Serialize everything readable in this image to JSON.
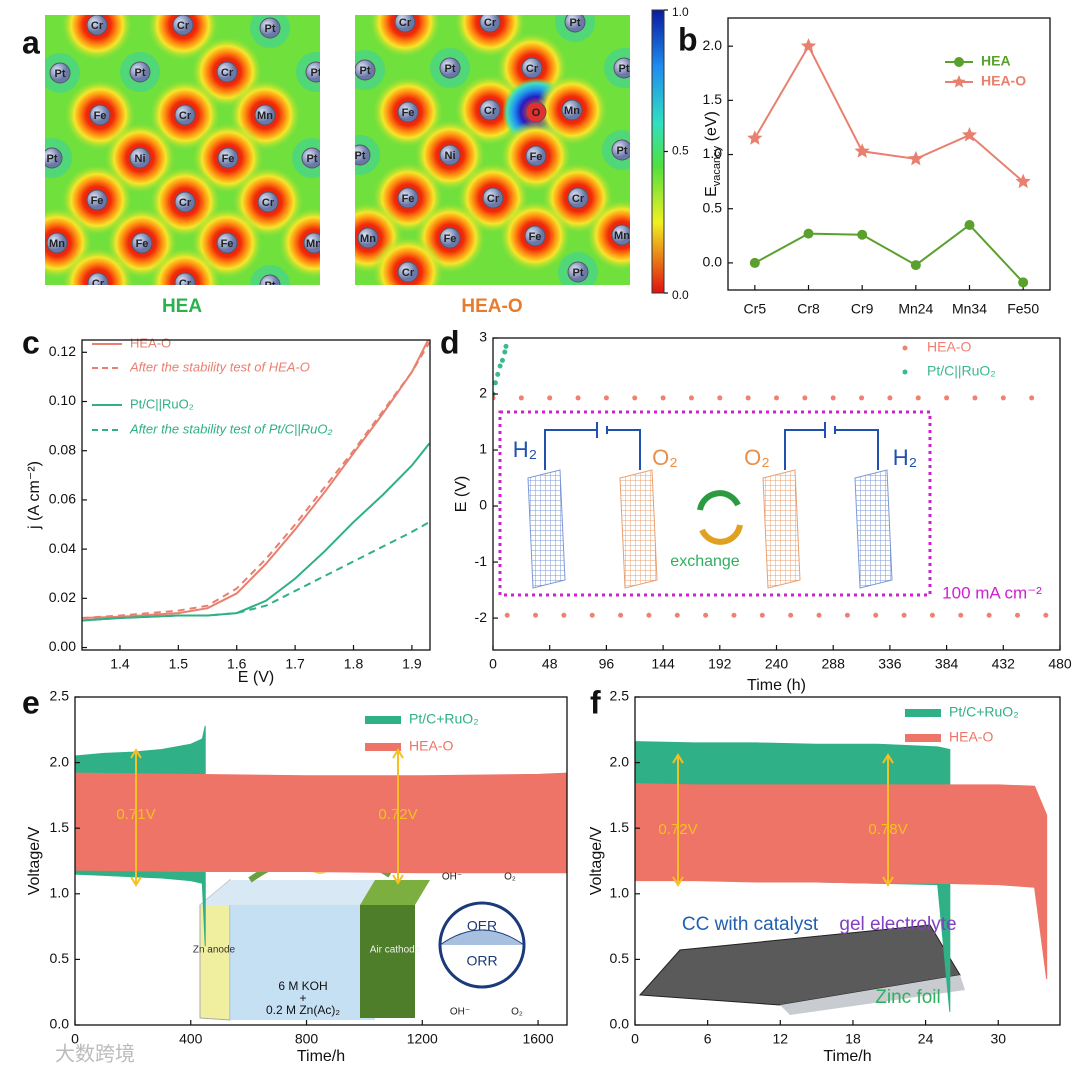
{
  "panel_labels": [
    "a",
    "b",
    "c",
    "d",
    "e",
    "f"
  ],
  "panel_a": {
    "maps": [
      {
        "label": "HEA",
        "label_color": "#2bb24c",
        "atoms": [
          "Cr",
          "Cr",
          "Pt",
          "Pt",
          "Pt",
          "Cr",
          "Pt",
          "Fe",
          "Cr",
          "Mn",
          "Pt",
          "Ni",
          "Fe",
          "Pt",
          "Fe",
          "Cr",
          "Cr",
          "Mn",
          "Fe",
          "Fe",
          "Mn",
          "Cr",
          "Cr",
          "Pt"
        ]
      },
      {
        "label": "HEA-O",
        "label_color": "#e87b2e",
        "atoms": [
          "Cr",
          "Cr",
          "Pt",
          "Pt",
          "Pt",
          "Cr",
          "Pt",
          "Fe",
          "Cr",
          "O",
          "Mn",
          "Pt",
          "Ni",
          "Fe",
          "Pt",
          "Fe",
          "Cr",
          "Cr",
          "Mn",
          "Fe",
          "Fe",
          "Mn",
          "Cr",
          "Pt"
        ]
      }
    ],
    "colorbar_ticks": [
      {
        "value": 1,
        "label": "1.0"
      },
      {
        "value": 0.5,
        "label": "0.5"
      },
      {
        "value": 0,
        "label": "0.0"
      }
    ]
  },
  "chart_data": [
    {
      "type": "line",
      "y_label": "E",
      "y_label_sub": "vacancy",
      "y_label_unit": " (eV)",
      "categories": [
        "Cr5",
        "Cr8",
        "Cr9",
        "Mn24",
        "Mn34",
        "Fe50"
      ],
      "ylim": [
        -0.25,
        2.26
      ],
      "yticks": [
        {
          "value": 0,
          "label": "0.0"
        },
        {
          "value": 0.5,
          "label": "0.5"
        },
        {
          "value": 1,
          "label": "1.0"
        },
        {
          "value": 1.5,
          "label": "1.5"
        },
        {
          "value": 2,
          "label": "2.0"
        }
      ],
      "series": [
        {
          "name": "HEA",
          "color": "#5aa02c",
          "marker": "circle",
          "values": [
            0,
            0.27,
            0.26,
            -0.02,
            0.35,
            -0.18
          ]
        },
        {
          "name": "HEA-O",
          "color": "#e8806f",
          "marker": "star",
          "values": [
            1.15,
            2.0,
            1.03,
            0.96,
            1.18,
            0.75
          ]
        }
      ]
    },
    {
      "type": "line",
      "x_label": "E (V)",
      "y_label": "j (A cm⁻²)",
      "x": [
        1.335,
        1.4,
        1.5,
        1.55,
        1.6,
        1.65,
        1.7,
        1.75,
        1.8,
        1.85,
        1.9,
        1.93
      ],
      "xlim": [
        1.335,
        1.931
      ],
      "xticks": [
        1.4,
        1.5,
        1.6,
        1.7,
        1.8,
        1.9
      ],
      "ylim": [
        -0.001,
        0.125
      ],
      "yticks": [
        {
          "value": 0,
          "label": "0.00"
        },
        {
          "value": 0.02,
          "label": "0.02"
        },
        {
          "value": 0.04,
          "label": "0.04"
        },
        {
          "value": 0.06,
          "label": "0.06"
        },
        {
          "value": 0.08,
          "label": "0.08"
        },
        {
          "value": 0.1,
          "label": "0.10"
        },
        {
          "value": 0.12,
          "label": "0.12"
        }
      ],
      "series": [
        {
          "name": "HEA-O",
          "color": "#e8806f",
          "dash": false,
          "values": [
            0.012,
            0.0125,
            0.014,
            0.016,
            0.022,
            0.034,
            0.048,
            0.063,
            0.079,
            0.095,
            0.112,
            0.126
          ]
        },
        {
          "name": "After the stability test of HEA-O",
          "color": "#e8806f",
          "dash": true,
          "values": [
            0.012,
            0.013,
            0.015,
            0.017,
            0.024,
            0.036,
            0.05,
            0.065,
            0.08,
            0.096,
            0.112,
            0.124
          ]
        },
        {
          "name": "Pt/C||RuO₂",
          "color": "#2fb086",
          "dash": false,
          "values": [
            0.011,
            0.012,
            0.013,
            0.013,
            0.014,
            0.019,
            0.028,
            0.039,
            0.051,
            0.062,
            0.074,
            0.083
          ]
        },
        {
          "name": "After the stability test of Pt/C||RuO₂",
          "color": "#2fb086",
          "dash": true,
          "values": [
            0.011,
            0.012,
            0.013,
            0.013,
            0.014,
            0.017,
            0.023,
            0.029,
            0.035,
            0.041,
            0.047,
            0.051
          ]
        }
      ]
    },
    {
      "type": "scatter",
      "x_label": "Time (h)",
      "y_label": "E (V)",
      "xlim": [
        0,
        480
      ],
      "xticks": [
        0,
        48,
        96,
        144,
        192,
        240,
        288,
        336,
        384,
        432,
        480
      ],
      "ylim": [
        -2.57,
        3
      ],
      "yticks": [
        -2,
        -1,
        0,
        1,
        2,
        3
      ],
      "annotations": [
        "100 mA cm⁻²",
        "H₂",
        "O₂",
        "O₂",
        "H₂",
        "exchange"
      ],
      "series": [
        {
          "name": "HEA-O",
          "color": "#f08070",
          "x": [
            0,
            12,
            24,
            36,
            48,
            60,
            72,
            84,
            96,
            108,
            120,
            132,
            144,
            156,
            168,
            180,
            192,
            204,
            216,
            228,
            240,
            252,
            264,
            276,
            288,
            300,
            312,
            324,
            336,
            348,
            360,
            372,
            384,
            396,
            408,
            420,
            432,
            444,
            456,
            468
          ],
          "values": [
            1.93,
            -1.95,
            1.93,
            -1.95,
            1.93,
            -1.95,
            1.93,
            -1.95,
            1.93,
            -1.95,
            1.93,
            -1.95,
            1.93,
            -1.95,
            1.93,
            -1.95,
            1.93,
            -1.95,
            1.93,
            -1.95,
            1.93,
            -1.95,
            1.93,
            -1.95,
            1.93,
            -1.95,
            1.93,
            -1.95,
            1.93,
            -1.95,
            1.93,
            -1.95,
            1.93,
            -1.95,
            1.93,
            -1.95,
            1.93,
            -1.95,
            1.93,
            -1.95
          ]
        },
        {
          "name": "Pt/C||RuO₂",
          "color": "#3cb88e",
          "x": [
            0,
            2,
            4,
            6,
            8,
            10,
            11
          ],
          "values": [
            2.0,
            2.2,
            2.35,
            2.5,
            2.6,
            2.75,
            2.85
          ]
        }
      ]
    },
    {
      "type": "band",
      "x_label": "Time/h",
      "y_label": "Voltage/V",
      "xlim": [
        0,
        1700
      ],
      "xticks": [
        0,
        400,
        800,
        1200,
        1600
      ],
      "ylim": [
        0,
        2.5
      ],
      "yticks": [
        {
          "value": 0,
          "label": "0.0"
        },
        {
          "value": 0.5,
          "label": "0.5"
        },
        {
          "value": 1,
          "label": "1.0"
        },
        {
          "value": 1.5,
          "label": "1.5"
        },
        {
          "value": 2,
          "label": "2.0"
        },
        {
          "value": 2.5,
          "label": "2.5"
        }
      ],
      "annotations": [
        "0.71V",
        "0.72V",
        "Zn anode",
        "Air cathode",
        "6 M KOH",
        "+",
        "0.2 M Zn(Ac)₂",
        "OER",
        "ORR",
        "OH⁻",
        "O₂",
        "OH⁻",
        "O₂"
      ],
      "series": [
        {
          "name": "Pt/C+RuO₂",
          "color": "#2fb086",
          "x": [
            0,
            100,
            200,
            300,
            400,
            440,
            450
          ],
          "high": [
            2.05,
            2.07,
            2.08,
            2.1,
            2.14,
            2.18,
            2.28
          ],
          "low": [
            1.15,
            1.14,
            1.13,
            1.12,
            1.1,
            1.08,
            0.6
          ]
        },
        {
          "name": "HEA-O",
          "color": "#ee7467",
          "x": [
            0,
            400,
            800,
            1200,
            1600,
            1700
          ],
          "high": [
            1.92,
            1.91,
            1.9,
            1.9,
            1.91,
            1.92
          ],
          "low": [
            1.18,
            1.17,
            1.17,
            1.16,
            1.16,
            1.16
          ]
        }
      ]
    },
    {
      "type": "band",
      "x_label": "Time/h",
      "y_label": "Voltage/V",
      "xlim": [
        0,
        35.1
      ],
      "xticks": [
        0,
        6,
        12,
        18,
        24,
        30
      ],
      "ylim": [
        0,
        2.5
      ],
      "yticks": [
        {
          "value": 0,
          "label": "0.0"
        },
        {
          "value": 0.5,
          "label": "0.5"
        },
        {
          "value": 1,
          "label": "1.0"
        },
        {
          "value": 1.5,
          "label": "1.5"
        },
        {
          "value": 2,
          "label": "2.0"
        },
        {
          "value": 2.5,
          "label": "2.5"
        }
      ],
      "annotations": [
        "0.72V",
        "0.78V",
        "CC with catalyst",
        "gel electrolyte",
        "Zinc foil"
      ],
      "series": [
        {
          "name": "Pt/C+RuO₂",
          "color": "#2fb086",
          "x": [
            0,
            5,
            10,
            15,
            20,
            25,
            26
          ],
          "high": [
            2.16,
            2.15,
            2.15,
            2.14,
            2.14,
            2.12,
            2.1
          ],
          "low": [
            1.14,
            1.12,
            1.1,
            1.09,
            1.08,
            1.07,
            0.1
          ]
        },
        {
          "name": "HEA-O",
          "color": "#ee7467",
          "x": [
            0,
            5,
            10,
            15,
            20,
            25,
            30,
            33,
            34
          ],
          "high": [
            1.84,
            1.83,
            1.83,
            1.83,
            1.83,
            1.83,
            1.83,
            1.82,
            1.6
          ],
          "low": [
            1.1,
            1.1,
            1.09,
            1.09,
            1.08,
            1.08,
            1.07,
            1.05,
            0.35
          ]
        }
      ]
    }
  ],
  "watermark": "大数跨境"
}
